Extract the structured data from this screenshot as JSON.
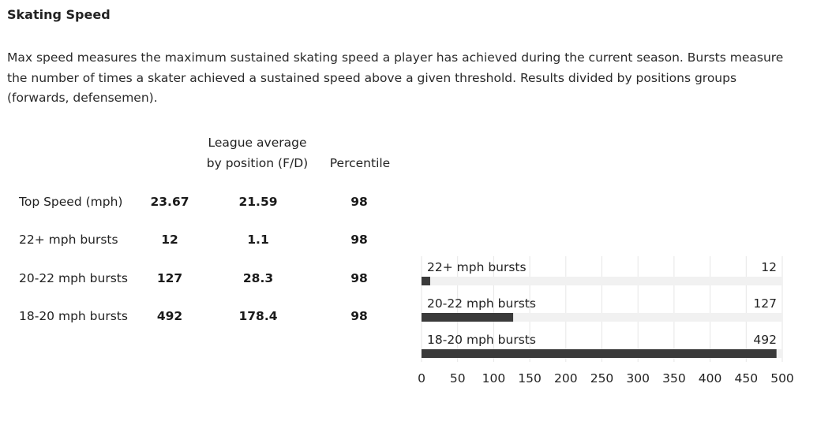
{
  "section": {
    "title": "Skating Speed",
    "description": "Max speed measures the maximum sustained skating speed a player has achieved during the current season. Bursts measure the number of times a skater achieved a sustained speed above a given threshold. Results divided by positions groups (forwards, defensemen)."
  },
  "table": {
    "headers": {
      "league_line1": "League average",
      "league_line2": "by position (F/D)",
      "percentile": "Percentile"
    },
    "rows": [
      {
        "label": "Top Speed (mph)",
        "value": "23.67",
        "league_avg": "21.59",
        "percentile": "98"
      },
      {
        "label": "22+ mph bursts",
        "value": "12",
        "league_avg": "1.1",
        "percentile": "98"
      },
      {
        "label": "20-22 mph bursts",
        "value": "127",
        "league_avg": "28.3",
        "percentile": "98"
      },
      {
        "label": "18-20 mph bursts",
        "value": "492",
        "league_avg": "178.4",
        "percentile": "98"
      }
    ]
  },
  "chart_data": {
    "type": "bar",
    "orientation": "horizontal",
    "categories": [
      "22+ mph bursts",
      "20-22 mph bursts",
      "18-20 mph bursts"
    ],
    "values": [
      12,
      127,
      492
    ],
    "xlim": [
      0,
      500
    ],
    "xticks": [
      0,
      50,
      100,
      150,
      200,
      250,
      300,
      350,
      400,
      450,
      500
    ],
    "grid": true,
    "colors": {
      "bar": "#3a3a3a",
      "track": "#f1f1f1",
      "grid": "#e6e6e6"
    }
  }
}
